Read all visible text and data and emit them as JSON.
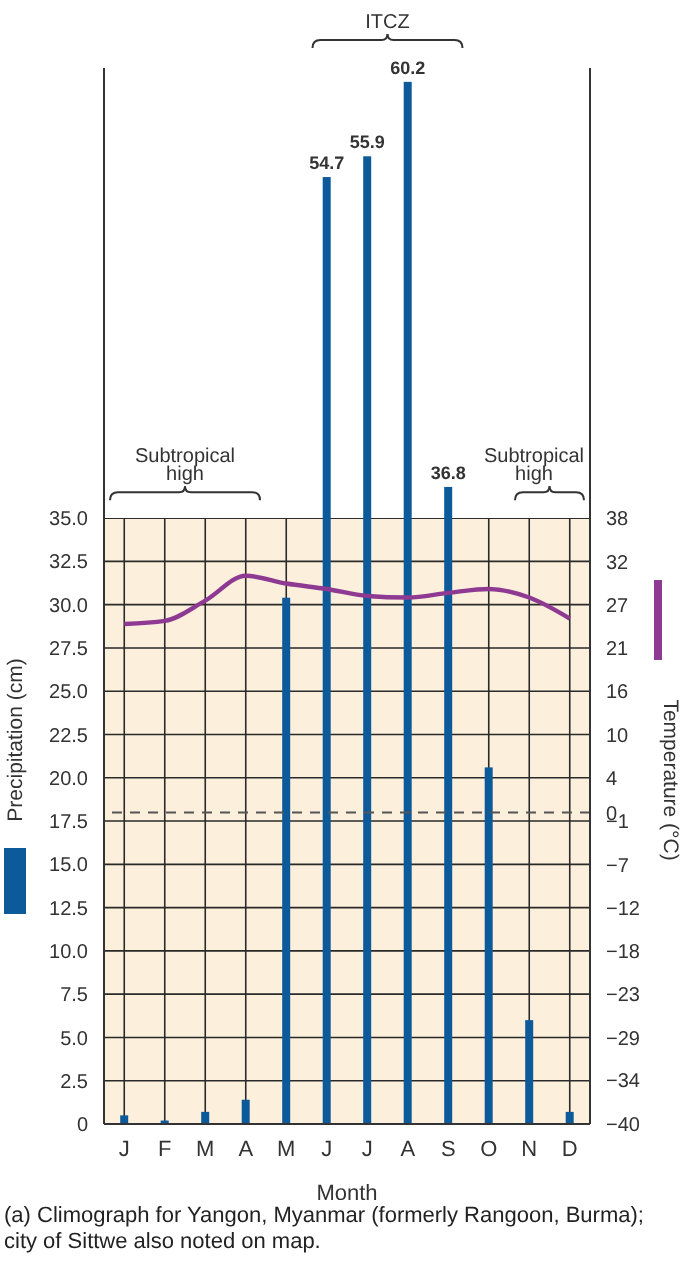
{
  "chart_data": {
    "type": "bar",
    "xlabel": "Month",
    "ylabel": "Precipitation (cm)",
    "y2label": "Temperature (°C)",
    "categories": [
      "J",
      "F",
      "M",
      "A",
      "M",
      "J",
      "J",
      "A",
      "S",
      "O",
      "N",
      "D"
    ],
    "series": [
      {
        "color": "#0c5a9a",
        "values": [
          0.5,
          0.2,
          0.7,
          1.4,
          30.4,
          54.7,
          55.9,
          60.2,
          36.8,
          20.6,
          6.0,
          0.7
        ],
        "value_labels": [
          null,
          null,
          null,
          null,
          null,
          "54.7",
          "55.9",
          "60.2",
          "36.8",
          null,
          null,
          null
        ]
      },
      {
        "type": "line",
        "axis": "y2",
        "color": "#8e3a92",
        "values": [
          24.2,
          24.6,
          27.2,
          30.4,
          29.4,
          28.7,
          27.8,
          27.6,
          28.2,
          28.7,
          27.6,
          24.9
        ]
      }
    ],
    "ylim": [
      0,
      61
    ],
    "yticks": [
      0,
      2.5,
      {
        "value": 5,
        "label": "5.0"
      },
      7.5,
      {
        "value": 10,
        "label": "10.0"
      },
      12.5,
      {
        "value": 15,
        "label": "15.0"
      },
      17.5,
      {
        "value": 20,
        "label": "20.0"
      },
      22.5,
      {
        "value": 25,
        "label": "25.0"
      },
      27.5,
      {
        "value": 30,
        "label": "30.0"
      },
      32.5,
      {
        "value": 35,
        "label": "35.0"
      }
    ],
    "y2lim": [
      -40,
      95.6
    ],
    "y2ticks": [
      {
        "value": -40,
        "label": "−40"
      },
      {
        "value": -34.4,
        "label": "−34"
      },
      {
        "value": -28.9,
        "label": "−29"
      },
      {
        "value": -23.3,
        "label": "−23"
      },
      {
        "value": -17.8,
        "label": "−18"
      },
      {
        "value": -12.2,
        "label": "−12"
      },
      {
        "value": -6.7,
        "label": "−7"
      },
      {
        "value": -1.1,
        "label": "−1"
      },
      0,
      {
        "value": 4.4,
        "label": "4"
      },
      10,
      {
        "value": 15.6,
        "label": "16"
      },
      {
        "value": 21.1,
        "label": "21"
      },
      {
        "value": 26.7,
        "label": "27"
      },
      {
        "value": 32.2,
        "label": "32"
      },
      {
        "value": 37.8,
        "label": "38"
      }
    ],
    "ref_lines": [
      {
        "axis": "y2",
        "value": 0,
        "label": null,
        "color": "#555555",
        "line_style": "dashed"
      }
    ],
    "grid": true,
    "marker": "none",
    "line_style": "solid",
    "annotations": [
      "Subtropical high",
      "ITCZ",
      "Subtropical high",
      "(a) Climograph for Yangon, Myanmar (formerly Rangoon, Burma); city of Sittwe also noted on map."
    ]
  }
}
